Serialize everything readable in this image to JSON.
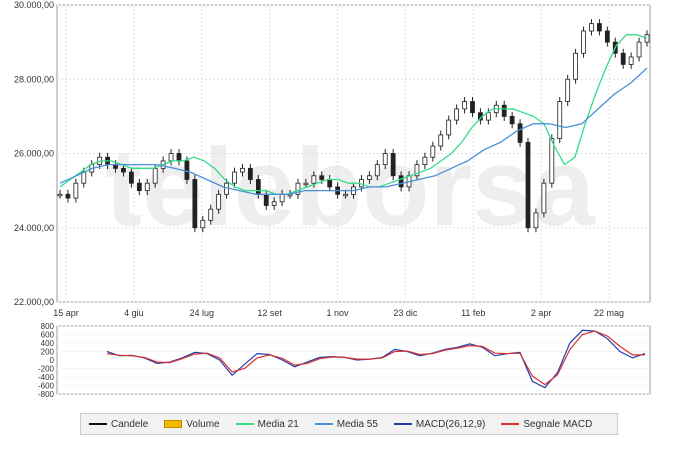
{
  "chart_data": [
    {
      "type": "candlestick",
      "watermark": "teleborsa",
      "ylim": [
        22000,
        30000
      ],
      "y_ticks": [
        22000,
        24000,
        26000,
        28000,
        30000
      ],
      "y_tick_labels": [
        "22.000,00",
        "24.000,00",
        "26.000,00",
        "28.000,00",
        "30.000,00"
      ],
      "x_tick_labels": [
        "15 apr",
        "4 giu",
        "24 lug",
        "12 set",
        "1 nov",
        "23 dic",
        "11 feb",
        "2 apr",
        "22 mag"
      ],
      "series": [
        {
          "name": "Candele",
          "color": "#111111",
          "values": [
            24900,
            24800,
            25200,
            25500,
            25700,
            25900,
            25700,
            25600,
            25500,
            25200,
            25000,
            25200,
            25600,
            25800,
            26000,
            25800,
            25300,
            24000,
            24200,
            24500,
            24900,
            25200,
            25500,
            25600,
            25300,
            24900,
            24600,
            24700,
            24900,
            24900,
            25200,
            25200,
            25400,
            25300,
            25100,
            24900,
            24900,
            25100,
            25300,
            25400,
            25700,
            26000,
            25400,
            25100,
            25400,
            25700,
            25900,
            26200,
            26500,
            26900,
            27200,
            27400,
            27100,
            26900,
            27100,
            27300,
            27000,
            26800,
            26300,
            24000,
            24400,
            25200,
            26400,
            27400,
            28000,
            28700,
            29300,
            29500,
            29300,
            29000,
            28700,
            28400,
            28600,
            29000,
            29200
          ]
        },
        {
          "name": "Media 21",
          "color": "#33dd88",
          "values": [
            25100,
            25300,
            25500,
            25700,
            25800,
            25800,
            25700,
            25600,
            25600,
            25600,
            25700,
            25800,
            25800,
            25900,
            25800,
            25600,
            25300,
            25100,
            25000,
            25000,
            25000,
            24900,
            24900,
            25000,
            25100,
            25200,
            25300,
            25300,
            25200,
            25200,
            25100,
            25100,
            25200,
            25300,
            25400,
            25500,
            25600,
            25800,
            26000,
            26300,
            26700,
            27000,
            27200,
            27200,
            27200,
            27100,
            27000,
            26800,
            26200,
            25700,
            25900,
            26800,
            27600,
            28300,
            28900,
            29200,
            29200,
            29100
          ]
        },
        {
          "name": "Media 55",
          "color": "#4a90d9",
          "values": [
            25200,
            25400,
            25600,
            25700,
            25700,
            25700,
            25700,
            25600,
            25500,
            25300,
            25100,
            25000,
            24900,
            24900,
            24900,
            25000,
            25000,
            25000,
            25000,
            25100,
            25100,
            25200,
            25300,
            25400,
            25600,
            25800,
            26100,
            26300,
            26600,
            26800,
            26800,
            26700,
            26800,
            27200,
            27600,
            27900,
            28300
          ]
        }
      ]
    },
    {
      "type": "line",
      "ylim": [
        -800,
        800
      ],
      "y_ticks": [
        800,
        600,
        400,
        200,
        0,
        -200,
        -400,
        -600,
        -800
      ],
      "y_tick_labels": [
        "800",
        "600",
        "400",
        "200",
        "0",
        "-200",
        "-400",
        "-600",
        "-800"
      ],
      "series": [
        {
          "name": "MACD(26,12,9)",
          "color": "#1f3fb0",
          "values": [
            200,
            100,
            110,
            50,
            -80,
            -50,
            50,
            180,
            150,
            0,
            -360,
            -100,
            150,
            130,
            0,
            -160,
            -50,
            60,
            80,
            60,
            0,
            20,
            60,
            250,
            200,
            100,
            160,
            250,
            300,
            380,
            300,
            100,
            150,
            180,
            -500,
            -650,
            -300,
            400,
            700,
            680,
            500,
            200,
            50,
            150
          ]
        },
        {
          "name": "Segnale MACD",
          "color": "#d83030",
          "values": [
            150,
            110,
            100,
            60,
            -50,
            -60,
            30,
            140,
            160,
            50,
            -280,
            -200,
            50,
            120,
            40,
            -120,
            -80,
            30,
            70,
            60,
            20,
            20,
            50,
            200,
            210,
            130,
            150,
            230,
            280,
            340,
            320,
            160,
            150,
            160,
            -380,
            -580,
            -350,
            250,
            600,
            680,
            560,
            320,
            120,
            120
          ]
        }
      ]
    }
  ],
  "legend": [
    {
      "label": "Candele",
      "color": "#111111",
      "kind": "line"
    },
    {
      "label": "Volume",
      "color": "#f5b800",
      "kind": "box"
    },
    {
      "label": "Media 21",
      "color": "#33dd88",
      "kind": "line"
    },
    {
      "label": "Media 55",
      "color": "#4a90d9",
      "kind": "line"
    },
    {
      "label": "MACD(26,12,9)",
      "color": "#1f3fb0",
      "kind": "line"
    },
    {
      "label": "Segnale MACD",
      "color": "#d83030",
      "kind": "line"
    }
  ]
}
